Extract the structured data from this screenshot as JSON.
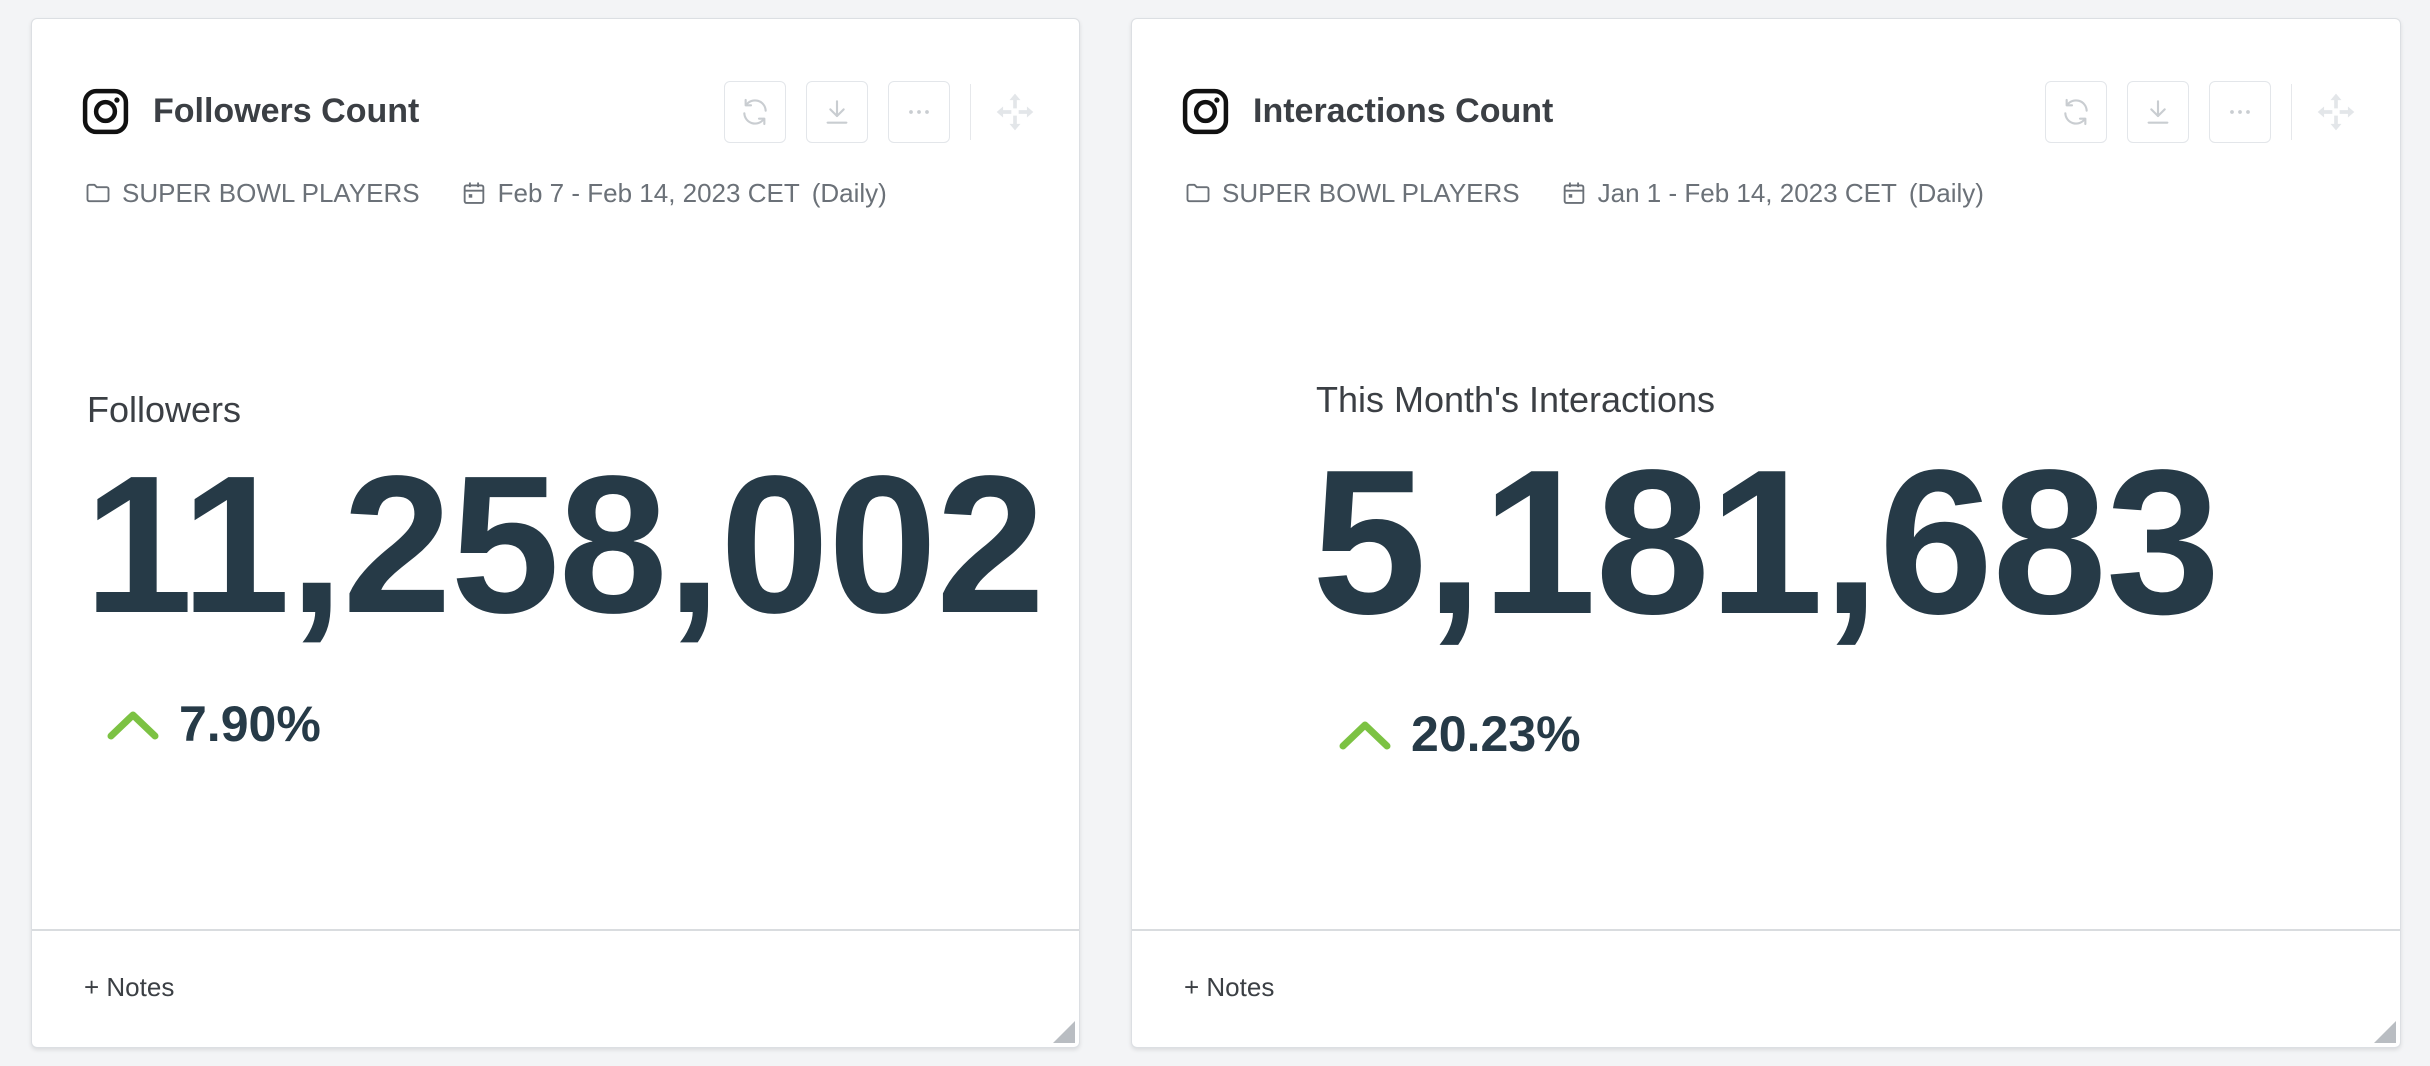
{
  "cards": [
    {
      "title": "Followers Count",
      "folder": "SUPER BOWL PLAYERS",
      "date_range": "Feb 7 - Feb 14, 2023 CET",
      "granularity": "(Daily)",
      "metric_label": "Followers",
      "metric_value": "11,258,002",
      "change": "7.90%",
      "change_direction": "up",
      "notes_label": "+ Notes",
      "icon": "instagram-icon"
    },
    {
      "title": "Interactions Count",
      "folder": "SUPER BOWL PLAYERS",
      "date_range": "Jan 1 - Feb 14, 2023 CET",
      "granularity": "(Daily)",
      "metric_label": "This Month's Interactions",
      "metric_value": "5,181,683",
      "change": "20.23%",
      "change_direction": "up",
      "notes_label": "+ Notes",
      "icon": "instagram-icon"
    }
  ],
  "toolbar_icons": [
    "refresh-icon",
    "download-icon",
    "more-icon",
    "move-icon"
  ],
  "colors": {
    "positive_change": "#7cc243",
    "metric_text": "#263a47",
    "background": "#f3f4f6"
  }
}
